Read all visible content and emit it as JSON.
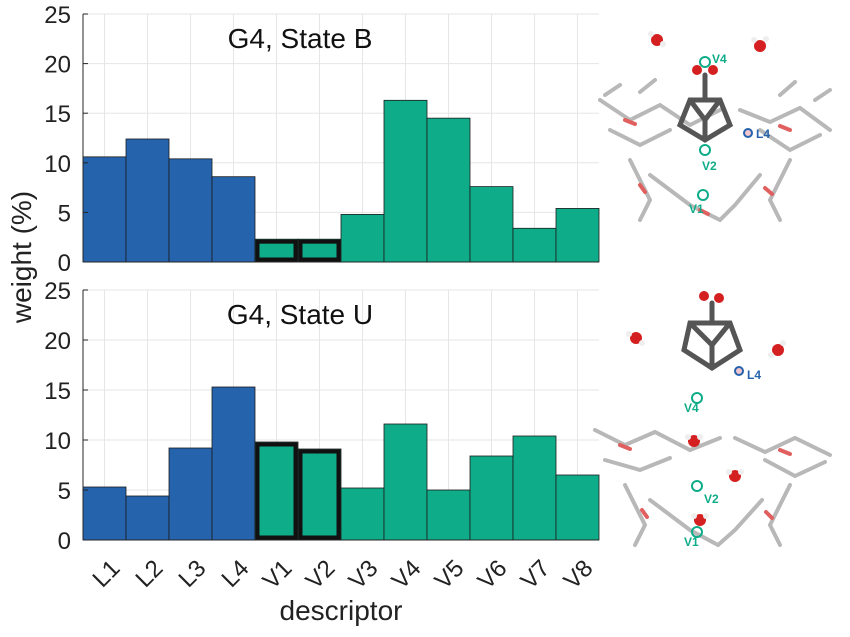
{
  "figure": {
    "ylabel": "weight (%)",
    "xlabel": "descriptor"
  },
  "colors": {
    "L": "#2563ad",
    "V": "#0fac89",
    "highlight_border": "#111111",
    "grid": "#e6e6e6"
  },
  "chart_data": [
    {
      "type": "bar",
      "title": "G4, State B",
      "categories": [
        "L1",
        "L2",
        "L3",
        "L4",
        "V1",
        "V2",
        "V3",
        "V4",
        "V5",
        "V6",
        "V7",
        "V8"
      ],
      "values": [
        10.6,
        12.4,
        10.4,
        8.6,
        2.3,
        2.3,
        4.8,
        16.3,
        14.5,
        7.6,
        3.4,
        5.4
      ],
      "highlighted": [
        "V1",
        "V2"
      ],
      "ylim": [
        0,
        25
      ],
      "yticks": [
        0,
        5,
        10,
        15,
        20,
        25
      ],
      "grid": true
    },
    {
      "type": "bar",
      "title": "G4, State U",
      "categories": [
        "L1",
        "L2",
        "L3",
        "L4",
        "V1",
        "V2",
        "V3",
        "V4",
        "V5",
        "V6",
        "V7",
        "V8"
      ],
      "values": [
        5.3,
        4.4,
        9.2,
        15.3,
        9.8,
        9.1,
        5.2,
        11.6,
        5.0,
        8.4,
        10.4,
        6.5
      ],
      "highlighted": [
        "V1",
        "V2"
      ],
      "ylim": [
        0,
        25
      ],
      "yticks": [
        0,
        5,
        10,
        15,
        20,
        25
      ],
      "grid": true
    }
  ],
  "molecule_labels": {
    "top": [
      "V4",
      "L4",
      "V2",
      "V1"
    ],
    "bottom": [
      "L4",
      "V4",
      "V2",
      "V1"
    ]
  }
}
